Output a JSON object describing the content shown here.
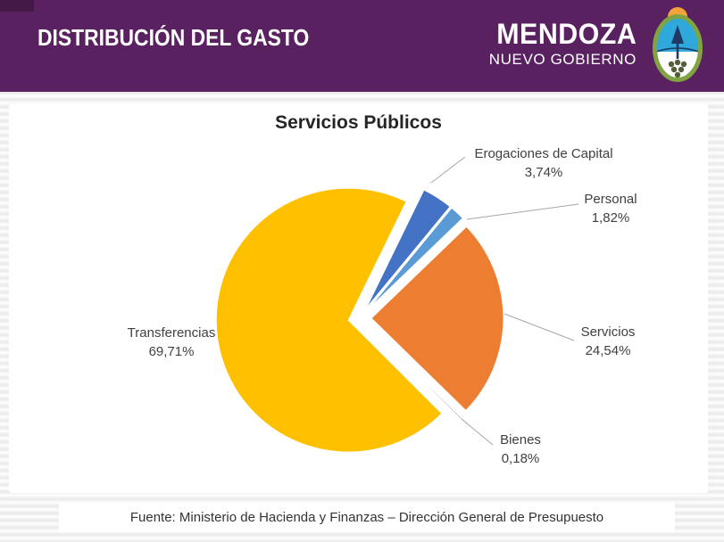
{
  "header": {
    "title": "DISTRIBUCIÓN DEL GASTO",
    "brand": {
      "name": "MENDOZA",
      "subtitle": "NUEVO GOBIERNO"
    },
    "logo": "mendoza-provincial-emblem",
    "colors": {
      "background": "#5A2161",
      "corner_accent": "#431846"
    }
  },
  "chart_data": {
    "type": "pie",
    "title": "Servicios Públicos",
    "legend": "none",
    "label_style": "category-name-with-percentage",
    "rotation_deg": 26,
    "explode": true,
    "slices": [
      {
        "label": "Erogaciones de Capital",
        "value": 3.74,
        "pct_label": "3,74%",
        "color": "#4472C4"
      },
      {
        "label": "Personal",
        "value": 1.82,
        "pct_label": "1,82%",
        "color": "#5B9BD5"
      },
      {
        "label": "Servicios",
        "value": 24.54,
        "pct_label": "24,54%",
        "color": "#ED7D31"
      },
      {
        "label": "Bienes",
        "value": 0.18,
        "pct_label": "0,18%",
        "color": "#A5A5A5"
      },
      {
        "label": "Transferencias",
        "value": 69.71,
        "pct_label": "69,71%",
        "color": "#FFC000"
      }
    ]
  },
  "footer": {
    "source": "Fuente: Ministerio de Hacienda y Finanzas – Dirección General de Presupuesto"
  }
}
